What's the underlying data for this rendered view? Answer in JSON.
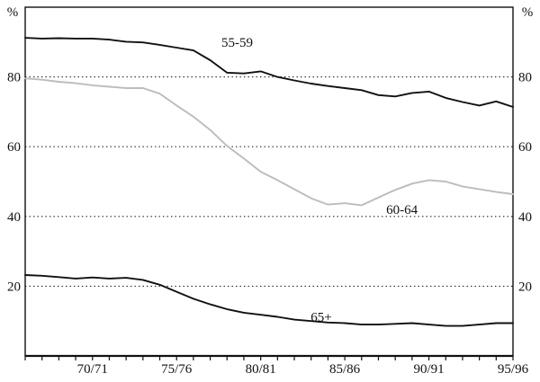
{
  "chart_data": {
    "type": "line",
    "title": "",
    "ylabel_left": "%",
    "ylabel_right": "%",
    "xlabel": "",
    "ylim": [
      0,
      100
    ],
    "yticks": [
      20,
      40,
      60,
      80
    ],
    "grid": "horizontal dotted lines at yticks",
    "legend_position": "inline-annotations",
    "x": [
      "66/67",
      "67/68",
      "68/69",
      "69/70",
      "70/71",
      "71/72",
      "72/73",
      "73/74",
      "74/75",
      "75/76",
      "76/77",
      "77/78",
      "78/79",
      "79/80",
      "80/81",
      "81/82",
      "82/83",
      "83/84",
      "84/85",
      "85/86",
      "86/87",
      "87/88",
      "88/89",
      "89/90",
      "90/91",
      "91/92",
      "92/93",
      "93/94",
      "94/95",
      "95/96"
    ],
    "xtick_labels": [
      "70/71",
      "75/76",
      "80/81",
      "85/86",
      "90/91",
      "95/96"
    ],
    "series": [
      {
        "name": "55-59",
        "color": "#111111",
        "values": [
          91.2,
          91.0,
          91.1,
          91.0,
          91.0,
          90.7,
          90.1,
          89.9,
          89.2,
          88.4,
          87.6,
          84.8,
          81.2,
          81.0,
          81.6,
          80.0,
          79.0,
          78.1,
          77.4,
          76.8,
          76.2,
          74.8,
          74.4,
          75.4,
          75.8,
          74.0,
          72.8,
          71.8,
          73.0,
          71.4
        ]
      },
      {
        "name": "60-64",
        "color": "#bcbcbc",
        "values": [
          79.6,
          79.2,
          78.6,
          78.2,
          77.6,
          77.2,
          76.8,
          76.8,
          75.2,
          71.8,
          68.6,
          64.8,
          60.2,
          56.6,
          52.8,
          50.4,
          47.8,
          45.2,
          43.4,
          43.8,
          43.2,
          45.4,
          47.6,
          49.4,
          50.4,
          50.0,
          48.6,
          47.8,
          47.0,
          46.4
        ]
      },
      {
        "name": "65+",
        "color": "#111111",
        "values": [
          23.2,
          23.0,
          22.6,
          22.2,
          22.5,
          22.2,
          22.4,
          21.8,
          20.4,
          18.4,
          16.4,
          14.8,
          13.4,
          12.4,
          11.8,
          11.2,
          10.4,
          10.0,
          9.6,
          9.4,
          9.0,
          9.0,
          9.2,
          9.4,
          9.0,
          8.6,
          8.6,
          9.0,
          9.4,
          9.4
        ]
      }
    ],
    "annotations": [
      {
        "text": "55-59",
        "xi": 12.6,
        "y": 90.0
      },
      {
        "text": "60-64",
        "xi": 22.4,
        "y": 42.0
      },
      {
        "text": "65+",
        "xi": 17.6,
        "y": 11.2
      }
    ]
  }
}
